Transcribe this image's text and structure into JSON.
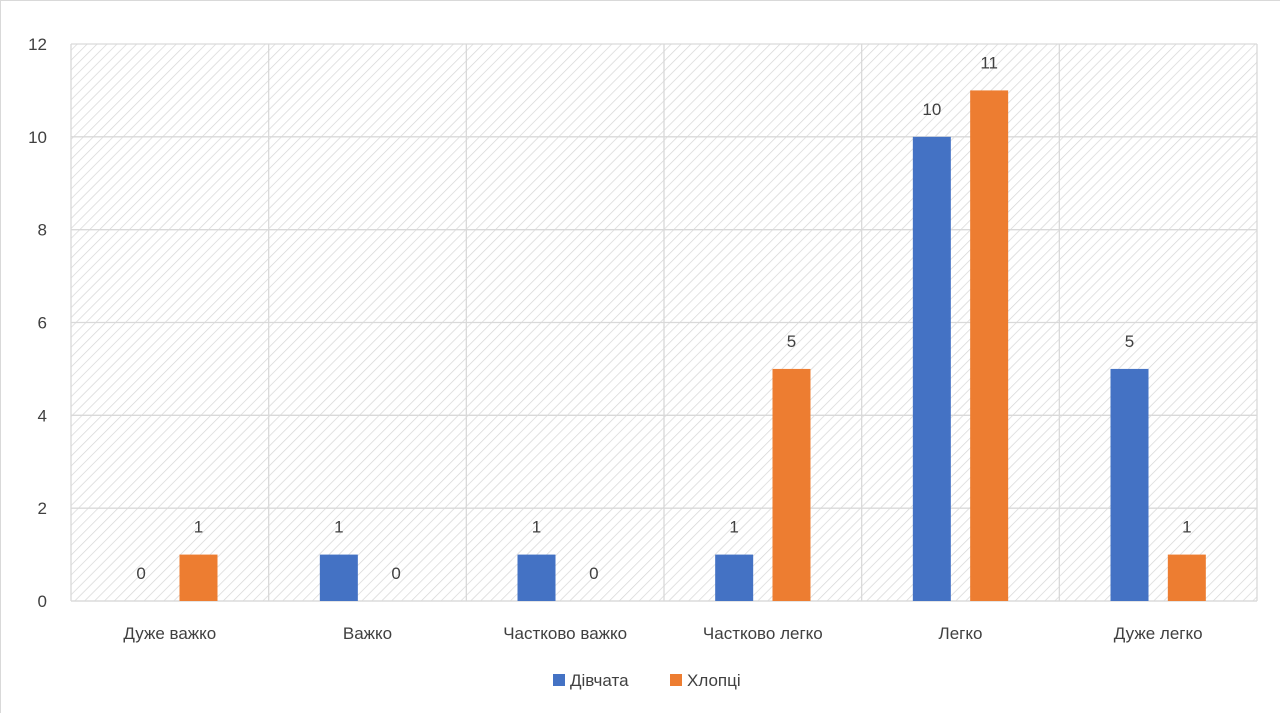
{
  "chart_data": {
    "type": "bar",
    "categories": [
      "Дуже важко",
      "Важко",
      "Частково важко",
      "Частково легко",
      "Легко",
      "Дуже легко"
    ],
    "series": [
      {
        "name": "Дівчата",
        "color": "#4472c4",
        "values": [
          0,
          1,
          1,
          1,
          10,
          5
        ]
      },
      {
        "name": "Хлопці",
        "color": "#ed7d31",
        "values": [
          1,
          0,
          0,
          5,
          11,
          1
        ]
      }
    ],
    "title": "",
    "xlabel": "",
    "ylabel": "",
    "ylim": [
      0,
      12
    ],
    "yticks": [
      "0",
      "2",
      "4",
      "6",
      "8",
      "10",
      "12"
    ],
    "grid": true,
    "plot_background": "diagonal hatch",
    "data_labels": true,
    "legend_position": "bottom"
  }
}
